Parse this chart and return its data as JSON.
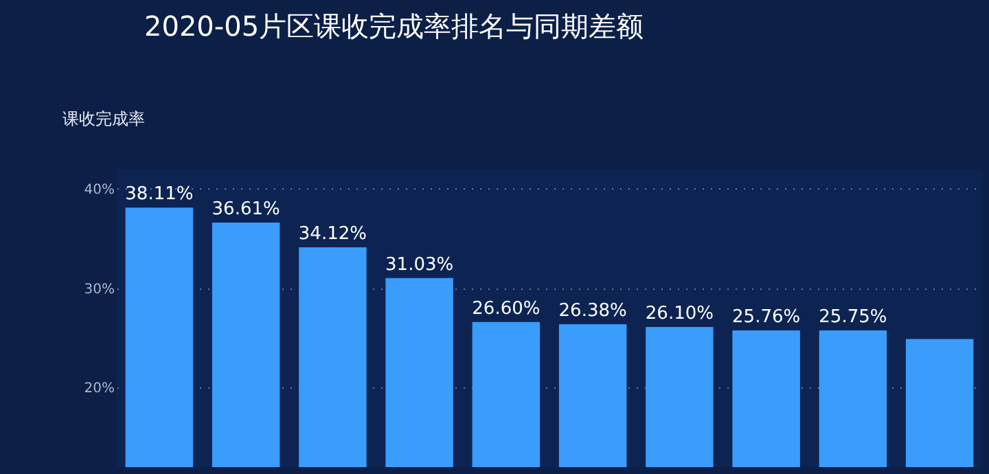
{
  "chart_data": {
    "type": "bar",
    "title": "2020-05片区课收完成率排名与同期差额",
    "ylabel": "课收完成率",
    "categories": [
      null,
      null,
      null,
      null,
      null,
      null,
      null,
      null,
      null,
      null
    ],
    "values": [
      38.11,
      36.61,
      34.12,
      31.03,
      26.6,
      26.38,
      26.1,
      25.76,
      25.75,
      24.9
    ],
    "value_labels": [
      "38.11%",
      "36.61%",
      "34.12%",
      "31.03%",
      "26.60%",
      "26.38%",
      "26.10%",
      "25.76%",
      "25.75%",
      null
    ],
    "color": "#3a9cfb",
    "ylim": [
      12,
      42
    ],
    "yticks": [
      {
        "value": 20,
        "label": "20%"
      },
      {
        "value": 30,
        "label": "30%"
      },
      {
        "value": 40,
        "label": "40%"
      }
    ],
    "grid": "y",
    "tick_labels": "y"
  }
}
